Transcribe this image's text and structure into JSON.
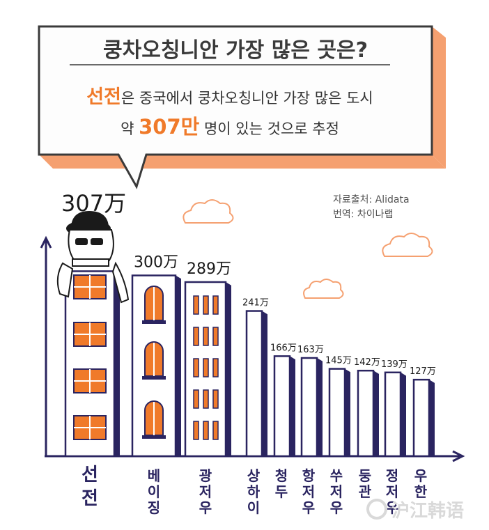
{
  "header": {
    "title": "쿵차오칭니안 가장 많은 곳은?",
    "line1_highlight": "선전",
    "line1_rest": "은 중국에서 쿵차오칭니안 가장 많은 도시",
    "line2_prefix": "약 ",
    "line2_highlight": "307만",
    "line2_suffix": " 명이 있는 것으로 추정"
  },
  "source": {
    "line1": "자료출처: Alidata",
    "line2": "번역: 차이나랩"
  },
  "watermark": "沪江韩语",
  "colors": {
    "accent": "#f07a2a",
    "bubble_side": "#f5a070",
    "bar_fill": "#ffffff",
    "bar_shadow": "#2a2460",
    "window": "#f07a2a",
    "axis": "#2a2460"
  },
  "chart_data": {
    "type": "bar",
    "categories": [
      "선전",
      "베이징",
      "광저우",
      "상하이",
      "청두",
      "항저우",
      "쑤저우",
      "둥관",
      "정저우",
      "우한"
    ],
    "values": [
      307,
      300,
      289,
      241,
      166,
      163,
      145,
      142,
      139,
      127
    ],
    "value_labels": [
      "307万",
      "300万",
      "289万",
      "241万",
      "166万",
      "163万",
      "145万",
      "142万",
      "139万",
      "127万"
    ],
    "unit": "万",
    "ylim": [
      0,
      320
    ],
    "grid": false,
    "legend": "none"
  }
}
